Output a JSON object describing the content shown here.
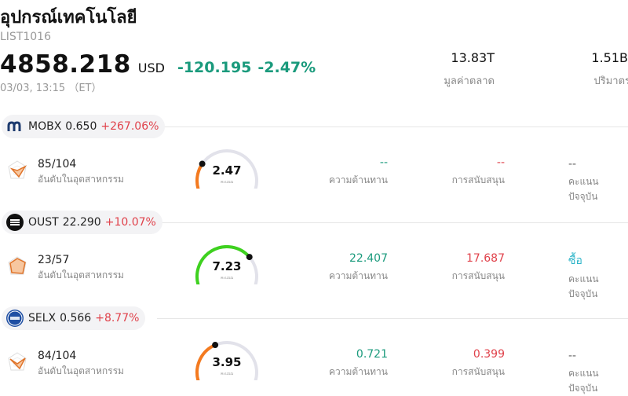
{
  "header": {
    "title": "อุปกรณ์เทคโนโลยี",
    "code": "LIST1016",
    "price": "4858.218",
    "currency": "USD",
    "change": "-120.195",
    "change_pct": "-2.47%",
    "time": "03/03, 13:15 （ET）",
    "market_cap_value": "13.83T",
    "market_cap_label": "มูลค่าตลาด",
    "volume_value": "1.51B",
    "volume_label": "ปริมาตร"
  },
  "rows": [
    {
      "ticker": "MOBX",
      "price": "0.650",
      "pct": "+267.06%",
      "rank": "85/104",
      "rank_label": "อันดับในอุตสาหกรรม",
      "score": "2.47",
      "score_fraction": 0.247,
      "score_color": "#f47a1f",
      "score_label": "คะแนน",
      "resistance": "--",
      "resistance_label": "ความต้านทาน",
      "support": "--",
      "support_label": "การสนับสนุน",
      "current": "--",
      "current_label": "คะแนนปัจจุบัน"
    },
    {
      "ticker": "OUST",
      "price": "22.290",
      "pct": "+10.07%",
      "rank": "23/57",
      "rank_label": "อันดับในอุตสาหกรรม",
      "score": "7.23",
      "score_fraction": 0.723,
      "score_color": "#3ed11f",
      "score_label": "คะแนน",
      "resistance": "22.407",
      "resistance_label": "ความต้านทาน",
      "support": "17.687",
      "support_label": "การสนับสนุน",
      "current": "ซื้อ",
      "current_label": "คะแนนปัจจุบัน"
    },
    {
      "ticker": "SELX",
      "price": "0.566",
      "pct": "+8.77%",
      "rank": "84/104",
      "rank_label": "อันดับในอุตสาหกรรม",
      "score": "3.95",
      "score_fraction": 0.395,
      "score_color": "#f47a1f",
      "score_label": "คะแนน",
      "resistance": "0.721",
      "resistance_label": "ความต้านทาน",
      "support": "0.399",
      "support_label": "การสนับสนุน",
      "current": "--",
      "current_label": "คะแนนปัจจุบัน"
    }
  ],
  "colors": {
    "up_green": "#1a9a7c",
    "down_red": "#e0424b",
    "buy": "#2cb4c8"
  }
}
